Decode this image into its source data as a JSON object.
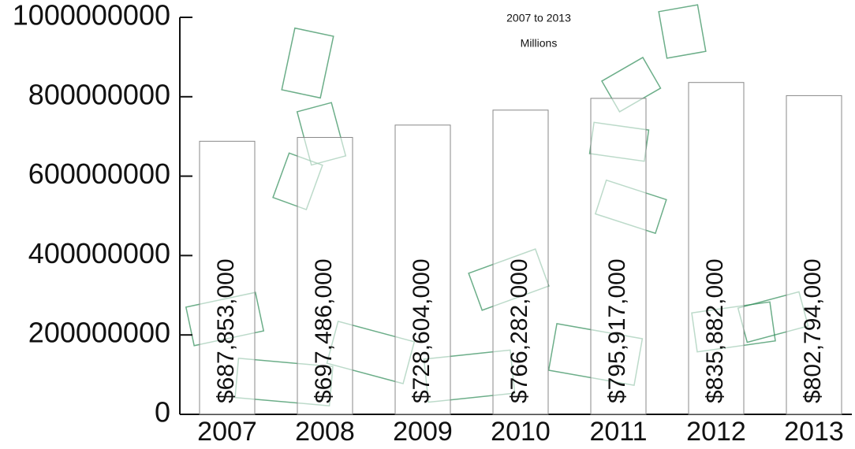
{
  "chart_data": {
    "type": "bar",
    "subtitle": "2007 to 2013",
    "unit_note": "Millions",
    "categories": [
      "2007",
      "2008",
      "2009",
      "2010",
      "2011",
      "2012",
      "2013"
    ],
    "values": [
      687853000,
      697486000,
      728604000,
      766282000,
      795917000,
      835882000,
      802794000
    ],
    "value_labels": [
      "$687,853,000",
      "$697,486,000",
      "$728,604,000",
      "$766,282,000",
      "$795,917,000",
      "$835,882,000",
      "$802,794,000"
    ],
    "color": "#ffffff",
    "ylim": [
      0,
      1000000000
    ],
    "yticks": [
      0,
      200000000,
      400000000,
      600000000,
      800000000,
      1000000000
    ],
    "grid": false
  }
}
